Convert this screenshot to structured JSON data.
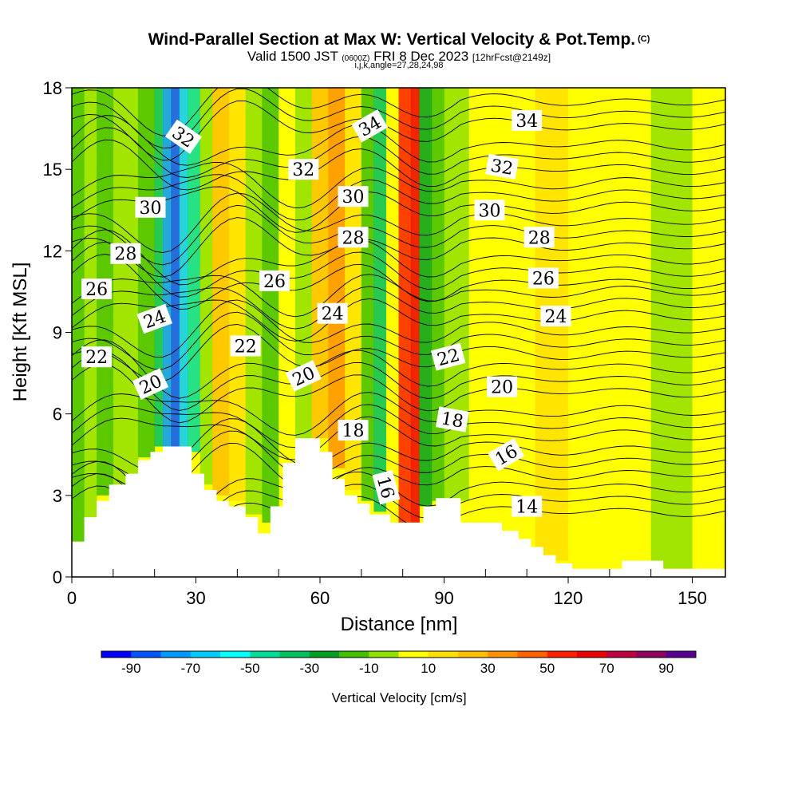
{
  "header": {
    "title": "Wind-Parallel Section at Max W: Vertical Velocity & Pot.Temp.",
    "title_unit": "(C)",
    "valid_prefix": "Valid 1500 JST",
    "valid_utc": "(0600Z)",
    "valid_date": "FRI 8 Dec 2023",
    "forecast": "[12hrFcst@2149z]",
    "indices": "i,j,k,angle=27,28,24,98"
  },
  "chart_data": {
    "type": "heatmap",
    "xlabel": "Distance [nm]",
    "ylabel": "Height [Kft MSL]",
    "xlim": [
      0,
      158
    ],
    "ylim": [
      0,
      18
    ],
    "x_ticks": [
      0,
      30,
      60,
      90,
      120,
      150
    ],
    "y_ticks": [
      0,
      3,
      6,
      9,
      12,
      15,
      18
    ],
    "colorbar": {
      "title": "Vertical Velocity [cm/s]",
      "tick_labels": [
        -90,
        -70,
        -50,
        -30,
        -10,
        10,
        30,
        50,
        70,
        90
      ],
      "colors": [
        "#0000ff",
        "#0055ff",
        "#0099ff",
        "#00ccff",
        "#00ffff",
        "#00dd99",
        "#00c060",
        "#00a020",
        "#40c000",
        "#90e000",
        "#ffff00",
        "#ffe000",
        "#ffc000",
        "#ff9000",
        "#ff6000",
        "#ff2000",
        "#ee0000",
        "#c00040",
        "#900060",
        "#5a0090"
      ]
    },
    "terrain": [
      [
        0,
        1.3
      ],
      [
        3,
        1.3
      ],
      [
        3,
        2.2
      ],
      [
        6,
        2.2
      ],
      [
        6,
        2.8
      ],
      [
        9,
        2.8
      ],
      [
        9,
        3.4
      ],
      [
        13,
        3.4
      ],
      [
        13,
        3.8
      ],
      [
        16,
        3.8
      ],
      [
        16,
        4.3
      ],
      [
        19,
        4.3
      ],
      [
        19,
        4.6
      ],
      [
        22,
        4.6
      ],
      [
        22,
        4.8
      ],
      [
        29,
        4.8
      ],
      [
        29,
        3.8
      ],
      [
        32,
        3.8
      ],
      [
        32,
        3.2
      ],
      [
        35,
        3.2
      ],
      [
        35,
        2.8
      ],
      [
        38,
        2.8
      ],
      [
        38,
        2.6
      ],
      [
        42,
        2.6
      ],
      [
        42,
        2.2
      ],
      [
        45,
        2.2
      ],
      [
        45,
        1.6
      ],
      [
        48,
        1.6
      ],
      [
        48,
        2.6
      ],
      [
        51,
        2.6
      ],
      [
        51,
        4.2
      ],
      [
        54,
        4.2
      ],
      [
        54,
        5.1
      ],
      [
        60,
        5.1
      ],
      [
        60,
        4.6
      ],
      [
        63,
        4.6
      ],
      [
        63,
        3.6
      ],
      [
        66,
        3.6
      ],
      [
        66,
        3.0
      ],
      [
        69,
        3.0
      ],
      [
        69,
        2.7
      ],
      [
        72,
        2.7
      ],
      [
        72,
        2.3
      ],
      [
        77,
        2.3
      ],
      [
        77,
        2.0
      ],
      [
        82,
        2.0
      ],
      [
        82,
        2.0
      ],
      [
        85,
        2.0
      ],
      [
        85,
        2.6
      ],
      [
        88,
        2.6
      ],
      [
        88,
        2.9
      ],
      [
        94,
        2.9
      ],
      [
        94,
        2.0
      ],
      [
        104,
        2.0
      ],
      [
        104,
        1.7
      ],
      [
        108,
        1.7
      ],
      [
        108,
        1.4
      ],
      [
        111,
        1.4
      ],
      [
        111,
        1.1
      ],
      [
        114,
        1.1
      ],
      [
        114,
        0.8
      ],
      [
        117,
        0.8
      ],
      [
        117,
        0.5
      ],
      [
        121,
        0.5
      ],
      [
        121,
        0.3
      ],
      [
        133,
        0.3
      ],
      [
        133,
        0.6
      ],
      [
        143,
        0.6
      ],
      [
        143,
        0.3
      ],
      [
        158,
        0.3
      ]
    ],
    "isentropes_C": [
      14,
      16,
      18,
      20,
      22,
      24,
      26,
      28,
      30,
      32,
      34
    ],
    "contour_labels": [
      {
        "text": "34",
        "x": 72,
        "y": 16.6,
        "rot": 30
      },
      {
        "text": "34",
        "x": 110,
        "y": 16.8,
        "rot": 0
      },
      {
        "text": "32",
        "x": 27,
        "y": 16.2,
        "rot": -35
      },
      {
        "text": "32",
        "x": 56,
        "y": 15.0,
        "rot": 0
      },
      {
        "text": "32",
        "x": 104,
        "y": 15.1,
        "rot": -10
      },
      {
        "text": "30",
        "x": 19,
        "y": 13.6,
        "rot": 0
      },
      {
        "text": "30",
        "x": 68,
        "y": 14.0,
        "rot": 0
      },
      {
        "text": "30",
        "x": 101,
        "y": 13.5,
        "rot": 0
      },
      {
        "text": "28",
        "x": 13,
        "y": 11.9,
        "rot": 0
      },
      {
        "text": "28",
        "x": 68,
        "y": 12.5,
        "rot": 0
      },
      {
        "text": "28",
        "x": 113,
        "y": 12.5,
        "rot": 0
      },
      {
        "text": "26",
        "x": 6,
        "y": 10.6,
        "rot": 0
      },
      {
        "text": "26",
        "x": 49,
        "y": 10.9,
        "rot": 0
      },
      {
        "text": "26",
        "x": 114,
        "y": 11.0,
        "rot": 0
      },
      {
        "text": "24",
        "x": 20,
        "y": 9.5,
        "rot": 20
      },
      {
        "text": "24",
        "x": 63,
        "y": 9.7,
        "rot": 0
      },
      {
        "text": "24",
        "x": 117,
        "y": 9.6,
        "rot": 0
      },
      {
        "text": "22",
        "x": 6,
        "y": 8.1,
        "rot": 0
      },
      {
        "text": "22",
        "x": 42,
        "y": 8.5,
        "rot": 0
      },
      {
        "text": "22",
        "x": 91,
        "y": 8.1,
        "rot": 15
      },
      {
        "text": "20",
        "x": 19,
        "y": 7.1,
        "rot": 25
      },
      {
        "text": "20",
        "x": 56,
        "y": 7.4,
        "rot": 25
      },
      {
        "text": "20",
        "x": 104,
        "y": 7.0,
        "rot": 0
      },
      {
        "text": "18",
        "x": 68,
        "y": 5.4,
        "rot": 0
      },
      {
        "text": "18",
        "x": 92,
        "y": 5.8,
        "rot": -10
      },
      {
        "text": "16",
        "x": 76,
        "y": 3.3,
        "rot": -75
      },
      {
        "text": "16",
        "x": 105,
        "y": 4.5,
        "rot": 30
      },
      {
        "text": "14",
        "x": 110,
        "y": 2.6,
        "rot": 0
      }
    ]
  }
}
